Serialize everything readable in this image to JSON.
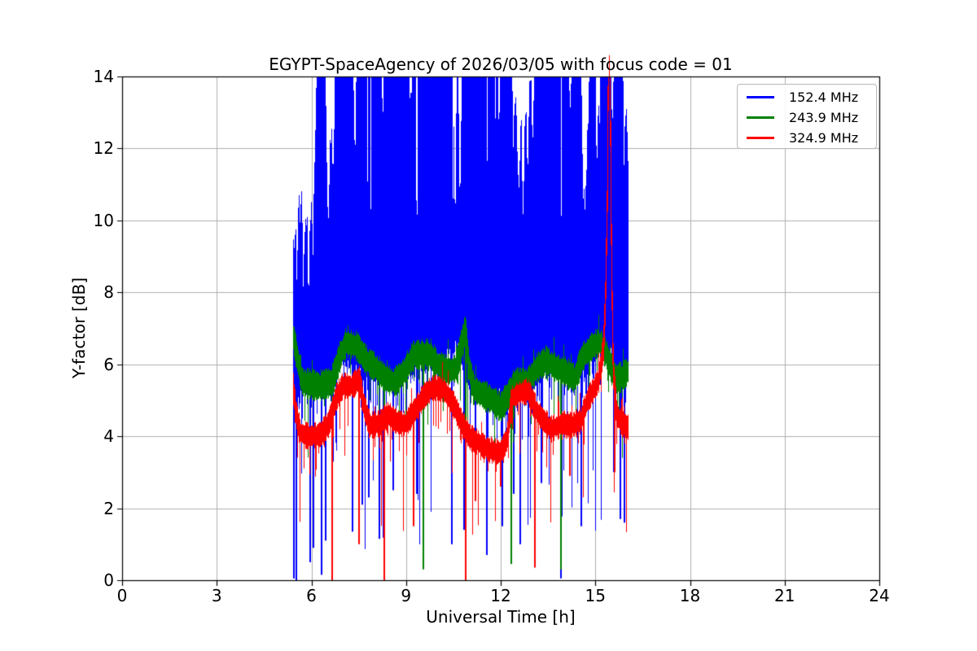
{
  "chart_data": {
    "type": "line",
    "title": "EGYPT-SpaceAgency of 2026/03/05 with focus code = 01",
    "xlabel": "Universal Time [h]",
    "ylabel": "Y-factor [dB]",
    "xlim": [
      0,
      24
    ],
    "ylim": [
      0,
      14
    ],
    "xticks": [
      0,
      3,
      6,
      9,
      12,
      15,
      18,
      21,
      24
    ],
    "yticks": [
      0,
      2,
      4,
      6,
      8,
      10,
      12,
      14
    ],
    "grid": true,
    "grid_color": "#b0b0b0",
    "background": "#ffffff",
    "axes_color": "#000000",
    "legend_position": "upper right",
    "time_range": [
      5.42,
      16.02
    ],
    "note": "Noisy Y-factor time series; blue trace saturates above 14 dB from ~6.2h to ~16h; red spike to top at ~15.44h; all series span ~5.4h to ~16h",
    "series": [
      {
        "name": "152.4 MHz",
        "color": "#0000ff",
        "render": "band",
        "lower_envelope_keyframes": [
          [
            5.42,
            4.0
          ],
          [
            5.5,
            5.2
          ],
          [
            5.7,
            5.3
          ],
          [
            6.1,
            5.35
          ],
          [
            6.5,
            5.5
          ],
          [
            6.9,
            5.9
          ],
          [
            7.2,
            6.0
          ],
          [
            7.5,
            5.8
          ],
          [
            8.0,
            5.5
          ],
          [
            8.5,
            5.4
          ],
          [
            9.0,
            5.6
          ],
          [
            9.4,
            5.9
          ],
          [
            9.8,
            6.0
          ],
          [
            10.2,
            6.1
          ],
          [
            10.5,
            6.5
          ],
          [
            10.7,
            6.3
          ],
          [
            11.0,
            5.5
          ],
          [
            11.4,
            5.2
          ],
          [
            11.9,
            5.1
          ],
          [
            12.3,
            5.3
          ],
          [
            12.7,
            5.0
          ],
          [
            13.1,
            5.6
          ],
          [
            13.5,
            5.9
          ],
          [
            13.9,
            5.8
          ],
          [
            14.3,
            5.6
          ],
          [
            14.7,
            5.9
          ],
          [
            15.0,
            6.3
          ],
          [
            15.3,
            6.6
          ],
          [
            15.5,
            6.3
          ],
          [
            15.7,
            5.8
          ],
          [
            16.02,
            5.6
          ]
        ],
        "upper_envelope_keyframes": [
          [
            5.42,
            8.3
          ],
          [
            5.5,
            9.3
          ],
          [
            5.62,
            10.4
          ],
          [
            5.72,
            8.8
          ],
          [
            5.82,
            9.5
          ],
          [
            5.95,
            9.0
          ],
          [
            6.05,
            9.8
          ],
          [
            6.12,
            12.0
          ],
          [
            6.18,
            14.8
          ],
          [
            6.42,
            14.8
          ],
          [
            6.48,
            11.5
          ],
          [
            6.55,
            9.2
          ],
          [
            6.62,
            13.0
          ],
          [
            6.68,
            10.2
          ],
          [
            6.78,
            14.8
          ],
          [
            7.3,
            14.8
          ],
          [
            7.38,
            11.2
          ],
          [
            7.46,
            14.8
          ],
          [
            8.2,
            14.8
          ],
          [
            8.26,
            11.6
          ],
          [
            8.33,
            14.8
          ],
          [
            9.08,
            14.8
          ],
          [
            9.14,
            12.6
          ],
          [
            9.22,
            14.8
          ],
          [
            10.48,
            14.8
          ],
          [
            10.56,
            8.4
          ],
          [
            10.63,
            14.8
          ],
          [
            10.71,
            8.9
          ],
          [
            10.79,
            14.8
          ],
          [
            11.88,
            14.8
          ],
          [
            11.94,
            12.1
          ],
          [
            12.02,
            14.8
          ],
          [
            12.33,
            14.8
          ],
          [
            12.4,
            11.6
          ],
          [
            12.48,
            13.6
          ],
          [
            12.56,
            10.1
          ],
          [
            12.64,
            12.6
          ],
          [
            12.71,
            9.8
          ],
          [
            12.79,
            13.1
          ],
          [
            12.87,
            10.6
          ],
          [
            12.94,
            14.8
          ],
          [
            13.01,
            11.1
          ],
          [
            13.09,
            14.8
          ],
          [
            14.13,
            14.8
          ],
          [
            14.2,
            12.6
          ],
          [
            14.28,
            14.8
          ],
          [
            14.53,
            14.8
          ],
          [
            14.6,
            11.1
          ],
          [
            14.68,
            9.7
          ],
          [
            14.76,
            12.1
          ],
          [
            14.84,
            14.8
          ],
          [
            14.98,
            14.8
          ],
          [
            15.04,
            10.9
          ],
          [
            15.11,
            13.1
          ],
          [
            15.17,
            14.8
          ],
          [
            15.48,
            14.8
          ],
          [
            15.54,
            12.1
          ],
          [
            15.6,
            14.8
          ],
          [
            15.86,
            14.8
          ],
          [
            15.91,
            10.6
          ],
          [
            15.96,
            13.0
          ],
          [
            16.02,
            12.0
          ]
        ],
        "noise": {
          "seed": 42,
          "jitter_top": 0.8,
          "jitter_bottom": 0.5,
          "early_until": 6.15,
          "early_extra_jitter": 2.2,
          "notch_prob": 0.035,
          "notch_depth": [
            0.5,
            4.0
          ],
          "ragged_prob": 0.3,
          "ragged_depth": 1.2,
          "down_spike_prob": 0.07,
          "down_spike_depth": [
            1.0,
            4.2
          ]
        },
        "spikes": [
          [
            5.45,
            0.05
          ],
          [
            5.52,
            0.0
          ],
          [
            5.95,
            0.5
          ],
          [
            6.07,
            0.9
          ],
          [
            6.33,
            0.15
          ],
          [
            6.45,
            1.1
          ],
          [
            7.3,
            1.35
          ],
          [
            7.62,
            2.1
          ],
          [
            7.82,
            2.3
          ],
          [
            8.15,
            1.15
          ],
          [
            8.6,
            2.5
          ],
          [
            9.35,
            2.4
          ],
          [
            10.45,
            1.0
          ],
          [
            10.85,
            1.4
          ],
          [
            11.2,
            2.6
          ],
          [
            11.55,
            0.7
          ],
          [
            12.05,
            1.5
          ],
          [
            12.42,
            2.4
          ],
          [
            12.62,
            1.0
          ],
          [
            13.3,
            2.7
          ],
          [
            13.9,
            0.05
          ],
          [
            14.55,
            1.5
          ],
          [
            15.8,
            1.7
          ],
          [
            15.93,
            1.6
          ]
        ]
      },
      {
        "name": "243.9 MHz",
        "color": "#008000",
        "render": "mean-band",
        "band_halfwidth": 0.26,
        "mean_keyframes": [
          [
            5.42,
            6.8
          ],
          [
            5.55,
            6.2
          ],
          [
            5.72,
            5.5
          ],
          [
            6.2,
            5.4
          ],
          [
            6.65,
            5.5
          ],
          [
            6.9,
            6.2
          ],
          [
            7.1,
            6.6
          ],
          [
            7.45,
            6.5
          ],
          [
            7.75,
            6.1
          ],
          [
            8.05,
            5.9
          ],
          [
            8.35,
            5.6
          ],
          [
            8.65,
            5.5
          ],
          [
            8.95,
            5.8
          ],
          [
            9.25,
            6.25
          ],
          [
            9.7,
            6.3
          ],
          [
            10.0,
            6.0
          ],
          [
            10.35,
            5.8
          ],
          [
            10.6,
            5.9
          ],
          [
            10.78,
            6.6
          ],
          [
            10.88,
            7.0
          ],
          [
            10.98,
            6.0
          ],
          [
            11.15,
            5.3
          ],
          [
            11.45,
            5.15
          ],
          [
            11.75,
            5.0
          ],
          [
            12.0,
            4.8
          ],
          [
            12.25,
            5.15
          ],
          [
            12.5,
            5.5
          ],
          [
            12.85,
            5.5
          ],
          [
            13.15,
            5.9
          ],
          [
            13.45,
            6.1
          ],
          [
            13.75,
            5.9
          ],
          [
            14.05,
            5.8
          ],
          [
            14.35,
            5.6
          ],
          [
            14.6,
            6.2
          ],
          [
            14.9,
            6.5
          ],
          [
            15.15,
            6.6
          ],
          [
            15.35,
            6.3
          ],
          [
            15.5,
            5.9
          ],
          [
            15.65,
            5.6
          ],
          [
            15.85,
            5.65
          ],
          [
            16.02,
            5.8
          ]
        ],
        "noise": {
          "seed": 7,
          "band_jitter": 0.18,
          "up_spike_prob": 0.05,
          "up_spike_amp": 0.5,
          "ragged_prob": 0.12,
          "ragged_depth": 1.0,
          "down_spike_prob": 0.015,
          "down_spike_depth": [
            1.0,
            2.2
          ]
        },
        "spikes": [
          [
            6.66,
            0.1
          ],
          [
            8.32,
            2.6
          ],
          [
            9.55,
            0.3
          ],
          [
            10.9,
            3.2
          ],
          [
            12.34,
            0.45
          ],
          [
            13.9,
            0.3
          ]
        ]
      },
      {
        "name": "324.9 MHz",
        "color": "#ff0000",
        "render": "mean-band",
        "band_halfwidth": 0.22,
        "mean_keyframes": [
          [
            5.42,
            5.45
          ],
          [
            5.5,
            4.7
          ],
          [
            5.65,
            4.1
          ],
          [
            5.9,
            4.0
          ],
          [
            6.3,
            4.05
          ],
          [
            6.55,
            4.35
          ],
          [
            6.8,
            5.1
          ],
          [
            7.0,
            5.4
          ],
          [
            7.3,
            5.4
          ],
          [
            7.52,
            5.6
          ],
          [
            7.65,
            4.9
          ],
          [
            7.85,
            4.3
          ],
          [
            8.15,
            4.35
          ],
          [
            8.45,
            4.6
          ],
          [
            8.7,
            4.4
          ],
          [
            9.0,
            4.35
          ],
          [
            9.3,
            4.75
          ],
          [
            9.55,
            5.1
          ],
          [
            9.85,
            5.35
          ],
          [
            10.2,
            5.3
          ],
          [
            10.5,
            4.9
          ],
          [
            10.8,
            4.3
          ],
          [
            11.05,
            3.95
          ],
          [
            11.35,
            3.8
          ],
          [
            11.65,
            3.6
          ],
          [
            12.0,
            3.55
          ],
          [
            12.2,
            3.9
          ],
          [
            12.35,
            5.05
          ],
          [
            12.6,
            5.2
          ],
          [
            12.9,
            5.25
          ],
          [
            13.1,
            4.75
          ],
          [
            13.35,
            4.45
          ],
          [
            13.6,
            4.2
          ],
          [
            13.95,
            4.35
          ],
          [
            14.25,
            4.3
          ],
          [
            14.55,
            4.45
          ],
          [
            14.75,
            5.0
          ],
          [
            14.95,
            5.3
          ],
          [
            15.1,
            5.55
          ],
          [
            15.25,
            6.4
          ],
          [
            15.32,
            7.6
          ],
          [
            15.38,
            10.5
          ],
          [
            15.42,
            14.9
          ],
          [
            15.46,
            14.9
          ],
          [
            15.52,
            8.6
          ],
          [
            15.57,
            5.8
          ],
          [
            15.68,
            4.6
          ],
          [
            15.85,
            4.35
          ],
          [
            16.02,
            4.25
          ]
        ],
        "noise": {
          "seed": 13,
          "band_jitter": 0.16,
          "up_spike_prob": 0.06,
          "up_spike_amp": 0.5,
          "ragged_prob": 0.14,
          "ragged_depth": 0.9,
          "down_spike_prob": 0.02,
          "down_spike_depth": [
            1.3,
            3.0
          ]
        },
        "spikes": [
          [
            6.66,
            0.0
          ],
          [
            7.5,
            1.0
          ],
          [
            8.3,
            0.0
          ],
          [
            9.25,
            1.5
          ],
          [
            10.9,
            0.0
          ],
          [
            11.2,
            2.2
          ],
          [
            12.0,
            2.6
          ],
          [
            13.08,
            0.35
          ],
          [
            14.2,
            2.9
          ],
          [
            15.6,
            3.0
          ]
        ]
      }
    ]
  }
}
